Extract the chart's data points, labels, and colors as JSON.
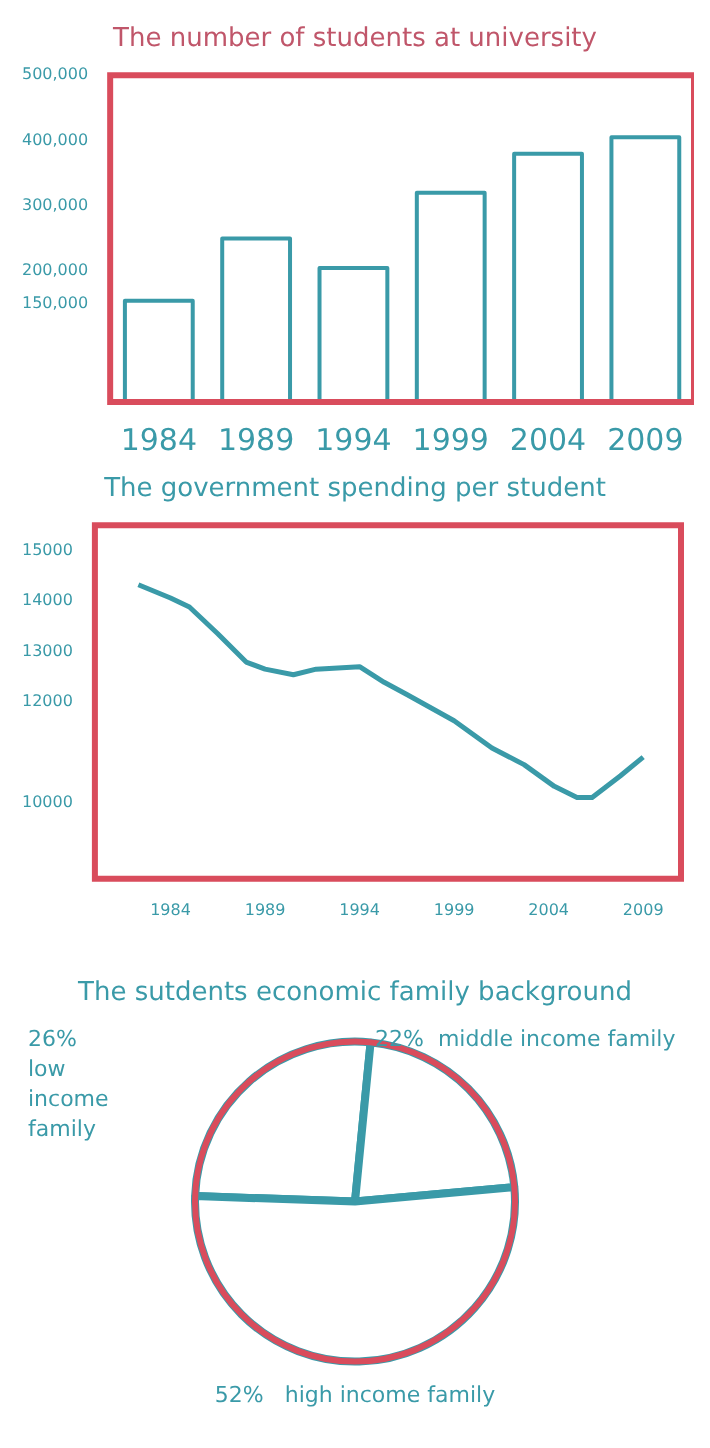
{
  "chart_data": [
    {
      "type": "bar",
      "title": "The number of students at university",
      "categories": [
        "1984",
        "1989",
        "1994",
        "1999",
        "2004",
        "2009"
      ],
      "values": [
        155000,
        250000,
        205000,
        320000,
        380000,
        405000
      ],
      "color": "#ffffff",
      "ylim": [
        0,
        500000
      ],
      "yticks": [
        {
          "value": 150000,
          "label": "150,000"
        },
        {
          "value": 200000,
          "label": "200,000"
        },
        {
          "value": 300000,
          "label": "300,000"
        },
        {
          "value": 400000,
          "label": "400,000"
        },
        {
          "value": 500000,
          "label": "500,000"
        }
      ],
      "grid": false,
      "legend": false
    },
    {
      "type": "line",
      "title": "The government spending per student",
      "x": [
        1982.3,
        1984,
        1985,
        1986.5,
        1988,
        1989,
        1990.5,
        1991.7,
        1994,
        1995.3,
        1996.5,
        1999,
        2001,
        2002.7,
        2004.3,
        2005.5,
        2006.3,
        2007.8,
        2009
      ],
      "values": [
        14320,
        14060,
        13880,
        13350,
        12790,
        12650,
        12540,
        12650,
        12700,
        12390,
        12150,
        11630,
        11090,
        10760,
        10330,
        10110,
        10110,
        10540,
        10910
      ],
      "color": "#3a9aa8",
      "xlim": [
        1980,
        2011
      ],
      "xticks": [
        1984,
        1989,
        1994,
        1999,
        2004,
        2009
      ],
      "ylim": [
        8500,
        15500
      ],
      "yticks": [
        10000,
        12000,
        13000,
        14000,
        15000
      ],
      "grid": false,
      "legend": false,
      "marker": "none",
      "line_style": "solid"
    },
    {
      "type": "pie",
      "title": "The sutdents economic family background",
      "categories": [
        "low income family",
        "middle income family",
        "high income family"
      ],
      "values": [
        26,
        22,
        52
      ],
      "colors": [
        "#ffffff",
        "#ffffff",
        "#ffffff"
      ],
      "value_labels": [
        "26%",
        "22%",
        "52%"
      ],
      "legend": false
    }
  ]
}
